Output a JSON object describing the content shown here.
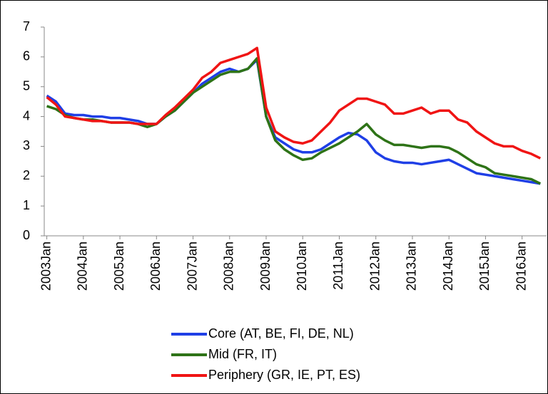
{
  "chart_data": {
    "type": "line",
    "x": [
      2003,
      2003.25,
      2003.5,
      2003.75,
      2004,
      2004.25,
      2004.5,
      2004.75,
      2005,
      2005.25,
      2005.5,
      2005.75,
      2006,
      2006.25,
      2006.5,
      2006.75,
      2007,
      2007.25,
      2007.5,
      2007.75,
      2008,
      2008.25,
      2008.5,
      2008.75,
      2009,
      2009.25,
      2009.5,
      2009.75,
      2010,
      2010.25,
      2010.5,
      2010.75,
      2011,
      2011.25,
      2011.5,
      2011.75,
      2012,
      2012.25,
      2012.5,
      2012.75,
      2013,
      2013.25,
      2013.5,
      2013.75,
      2014,
      2014.25,
      2014.5,
      2014.75,
      2015,
      2015.25,
      2015.5,
      2015.75,
      2016,
      2016.25,
      2016.5
    ],
    "series": [
      {
        "name": "Core (AT, BE, FI, DE, NL)",
        "color": "#1f3fe6",
        "values": [
          4.7,
          4.5,
          4.1,
          4.05,
          4.05,
          4.0,
          4.0,
          3.95,
          3.95,
          3.9,
          3.85,
          3.75,
          3.75,
          4.0,
          4.2,
          4.5,
          4.8,
          5.1,
          5.3,
          5.5,
          5.6,
          5.5,
          5.6,
          5.9,
          4.0,
          3.3,
          3.1,
          2.9,
          2.8,
          2.8,
          2.9,
          3.1,
          3.3,
          3.45,
          3.4,
          3.2,
          2.8,
          2.6,
          2.5,
          2.45,
          2.45,
          2.4,
          2.45,
          2.5,
          2.55,
          2.4,
          2.25,
          2.1,
          2.05,
          2.0,
          1.95,
          1.9,
          1.85,
          1.8,
          1.75
        ]
      },
      {
        "name": "Mid (FR, IT)",
        "color": "#2e7317",
        "values": [
          4.35,
          4.25,
          4.05,
          3.95,
          3.9,
          3.9,
          3.85,
          3.8,
          3.8,
          3.8,
          3.75,
          3.65,
          3.75,
          4.0,
          4.2,
          4.5,
          4.8,
          5.0,
          5.2,
          5.4,
          5.5,
          5.5,
          5.6,
          5.95,
          4.0,
          3.2,
          2.9,
          2.7,
          2.55,
          2.6,
          2.8,
          2.95,
          3.1,
          3.3,
          3.5,
          3.75,
          3.4,
          3.2,
          3.05,
          3.05,
          3.0,
          2.95,
          3.0,
          3.0,
          2.95,
          2.8,
          2.6,
          2.4,
          2.3,
          2.1,
          2.05,
          2.0,
          1.95,
          1.9,
          1.75
        ]
      },
      {
        "name": "Periphery (GR, IE, PT, ES)",
        "color": "#f01414",
        "values": [
          4.65,
          4.4,
          4.0,
          3.95,
          3.9,
          3.85,
          3.85,
          3.8,
          3.8,
          3.8,
          3.75,
          3.75,
          3.75,
          4.05,
          4.3,
          4.6,
          4.9,
          5.3,
          5.5,
          5.8,
          5.9,
          6.0,
          6.1,
          6.3,
          4.3,
          3.5,
          3.3,
          3.15,
          3.1,
          3.2,
          3.5,
          3.8,
          4.2,
          4.4,
          4.6,
          4.6,
          4.5,
          4.4,
          4.1,
          4.1,
          4.2,
          4.3,
          4.1,
          4.2,
          4.2,
          3.9,
          3.8,
          3.5,
          3.3,
          3.1,
          3.0,
          3.0,
          2.85,
          2.75,
          2.6
        ]
      }
    ],
    "xlim": [
      2002.93,
      2016.67
    ],
    "xticks": [
      {
        "value": 2003,
        "label": "2003Jan"
      },
      {
        "value": 2004,
        "label": "2004Jan"
      },
      {
        "value": 2005,
        "label": "2005Jan"
      },
      {
        "value": 2006,
        "label": "2006Jan"
      },
      {
        "value": 2007,
        "label": "2007Jan"
      },
      {
        "value": 2008,
        "label": "2008Jan"
      },
      {
        "value": 2009,
        "label": "2009Jan"
      },
      {
        "value": 2010,
        "label": "2010Jan"
      },
      {
        "value": 2011,
        "label": "2011Jan"
      },
      {
        "value": 2012,
        "label": "2012Jan"
      },
      {
        "value": 2013,
        "label": "2013Jan"
      },
      {
        "value": 2014,
        "label": "2014Jan"
      },
      {
        "value": 2015,
        "label": "2015Jan"
      },
      {
        "value": 2016,
        "label": "2016Jan"
      }
    ],
    "ylim": [
      0,
      7
    ],
    "yticks": [
      0,
      1,
      2,
      3,
      4,
      5,
      6,
      7
    ],
    "grid": false,
    "legend": "bottom"
  }
}
